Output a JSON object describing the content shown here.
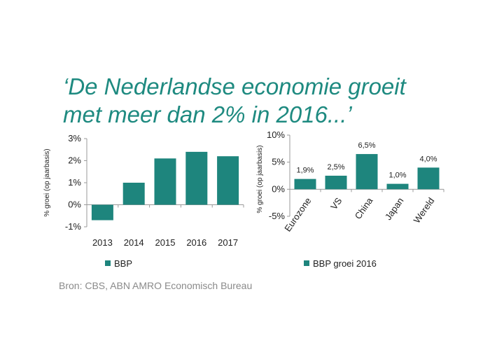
{
  "title": {
    "line1": "‘De Nederlandse economie groeit",
    "line2": "met meer dan 2% in 2016...’"
  },
  "source": "Bron: CBS, ABN AMRO Economisch Bureau",
  "colors": {
    "bar": "#1e857d",
    "title": "#1e8a80",
    "source": "#8a8a8a"
  },
  "chart_data": [
    {
      "type": "bar",
      "categories": [
        "2013",
        "2014",
        "2015",
        "2016",
        "2017"
      ],
      "series": [
        {
          "name": "BBP",
          "values": [
            -0.7,
            1.0,
            2.1,
            2.4,
            2.2
          ]
        }
      ],
      "ylabel": "% groei (op jaarbasis)",
      "ylim": [
        -1,
        3
      ],
      "yticks": [
        -1,
        0,
        1,
        2,
        3
      ],
      "ytick_labels": [
        "-1%",
        "0%",
        "1%",
        "2%",
        "3%"
      ],
      "legend": "bottom-left",
      "grid": false
    },
    {
      "type": "bar",
      "categories": [
        "Eurozone",
        "VS",
        "China",
        "Japan",
        "Wereld"
      ],
      "series": [
        {
          "name": "BBP groei 2016",
          "values": [
            1.9,
            2.5,
            6.5,
            1.0,
            4.0
          ]
        }
      ],
      "data_labels": [
        "1,9%",
        "2,5%",
        "6,5%",
        "1,0%",
        "4,0%"
      ],
      "ylabel": "% groei (op jaarbasis)",
      "ylim": [
        -5,
        10
      ],
      "yticks": [
        -5,
        0,
        5,
        10
      ],
      "ytick_labels": [
        "-5%",
        "0%",
        "5%",
        "10%"
      ],
      "legend": "bottom",
      "grid": false
    }
  ]
}
